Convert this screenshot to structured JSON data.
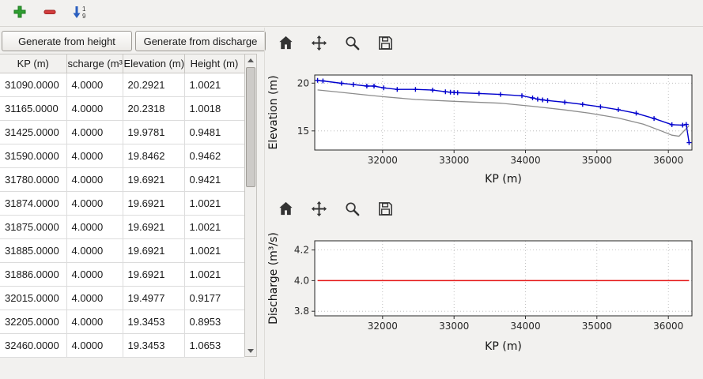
{
  "main_toolbar": {
    "icons": [
      {
        "name": "add",
        "color": "#2e9e30"
      },
      {
        "name": "remove",
        "color": "#d23c3c"
      },
      {
        "name": "sort-numeric",
        "color": "#2b5fbf"
      }
    ],
    "sort_digits": [
      "1",
      "9"
    ]
  },
  "actions": {
    "generate_from_height": "Generate from height",
    "generate_from_discharge": "Generate from discharge"
  },
  "table": {
    "headers": [
      "KP (m)",
      "scharge (m³/",
      "Elevation (m)",
      "Height (m)"
    ],
    "rows": [
      [
        "31090.0000",
        "4.0000",
        "20.2921",
        "1.0021"
      ],
      [
        "31165.0000",
        "4.0000",
        "20.2318",
        "1.0018"
      ],
      [
        "31425.0000",
        "4.0000",
        "19.9781",
        "0.9481"
      ],
      [
        "31590.0000",
        "4.0000",
        "19.8462",
        "0.9462"
      ],
      [
        "31780.0000",
        "4.0000",
        "19.6921",
        "0.9421"
      ],
      [
        "31874.0000",
        "4.0000",
        "19.6921",
        "1.0021"
      ],
      [
        "31875.0000",
        "4.0000",
        "19.6921",
        "1.0021"
      ],
      [
        "31885.0000",
        "4.0000",
        "19.6921",
        "1.0021"
      ],
      [
        "31886.0000",
        "4.0000",
        "19.6921",
        "1.0021"
      ],
      [
        "32015.0000",
        "4.0000",
        "19.4977",
        "0.9177"
      ],
      [
        "32205.0000",
        "4.0000",
        "19.3453",
        "0.8953"
      ],
      [
        "32460.0000",
        "4.0000",
        "19.3453",
        "1.0653"
      ]
    ]
  },
  "plot_toolbar_icons": [
    "home",
    "pan",
    "zoom",
    "save"
  ],
  "chart_data": [
    {
      "type": "line",
      "title": "",
      "xlabel": "KP (m)",
      "ylabel": "Elevation (m)",
      "xlim": [
        31050,
        36330
      ],
      "ylim": [
        13.0,
        20.85
      ],
      "xticks": [
        32000,
        33000,
        34000,
        35000,
        36000
      ],
      "xtick_labels": [
        "32000",
        "33000",
        "34000",
        "35000",
        "36000"
      ],
      "yticks": [
        15,
        20
      ],
      "ytick_labels": [
        "15",
        "20"
      ],
      "grid": true,
      "legend": "none",
      "series": [
        {
          "name": "bed-elevation",
          "color": "#8c8c8c",
          "marker": "none",
          "width": 1.3,
          "x": [
            31090,
            31425,
            31780,
            32015,
            32460,
            33000,
            33650,
            34100,
            34550,
            34900,
            35300,
            35650,
            35900,
            36050,
            36150,
            36290
          ],
          "y": [
            19.29,
            19.03,
            18.75,
            18.58,
            18.29,
            18.1,
            17.9,
            17.58,
            17.2,
            16.85,
            16.35,
            15.7,
            15.0,
            14.55,
            14.45,
            15.55
          ]
        },
        {
          "name": "water-surface-elevation",
          "color": "#0000cd",
          "marker": "+",
          "width": 1.4,
          "x": [
            31090,
            31165,
            31425,
            31590,
            31780,
            31880,
            32015,
            32205,
            32460,
            32700,
            32880,
            32950,
            33000,
            33050,
            33350,
            33650,
            33950,
            34100,
            34170,
            34240,
            34310,
            34550,
            34800,
            35050,
            35300,
            35550,
            35800,
            36050,
            36200,
            36250,
            36290
          ],
          "y": [
            20.29,
            20.23,
            19.98,
            19.85,
            19.69,
            19.69,
            19.5,
            19.35,
            19.35,
            19.27,
            19.1,
            19.05,
            19.02,
            19.0,
            18.92,
            18.82,
            18.68,
            18.45,
            18.32,
            18.25,
            18.18,
            18.0,
            17.78,
            17.52,
            17.22,
            16.85,
            16.3,
            15.65,
            15.6,
            15.68,
            13.78
          ]
        }
      ]
    },
    {
      "type": "line",
      "title": "",
      "xlabel": "KP (m)",
      "ylabel": "Discharge (m³/s)",
      "xlim": [
        31050,
        36330
      ],
      "ylim": [
        3.77,
        4.26
      ],
      "xticks": [
        32000,
        33000,
        34000,
        35000,
        36000
      ],
      "xtick_labels": [
        "32000",
        "33000",
        "34000",
        "35000",
        "36000"
      ],
      "yticks": [
        3.8,
        4.0,
        4.2
      ],
      "ytick_labels": [
        "3.8",
        "4.0",
        "4.2"
      ],
      "grid": true,
      "legend": "none",
      "series": [
        {
          "name": "discharge",
          "color": "#e41616",
          "marker": "none",
          "width": 1.5,
          "x": [
            31090,
            36290
          ],
          "y": [
            4.0,
            4.0
          ]
        }
      ]
    }
  ]
}
